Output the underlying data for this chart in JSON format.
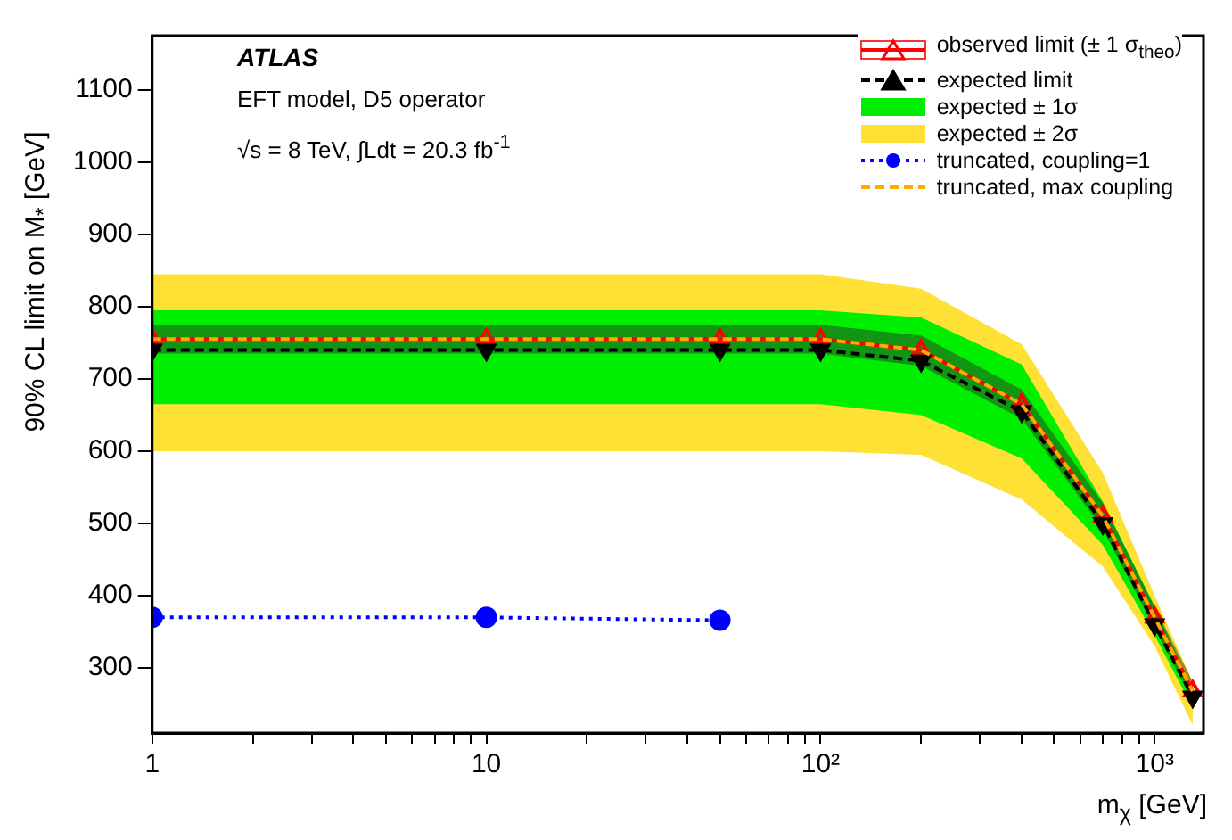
{
  "chart_data": {
    "type": "line",
    "xlabel": "m$_{χ}$ [GeV]",
    "ylabel": "90% CL limit on M$_{*}$ [GeV]",
    "annotations": [
      "ATLAS",
      "EFT model, D5 operator",
      "√s = 8 TeV,  ∫Ldt = 20.3 fb$^{-1}$"
    ],
    "log": "x",
    "xlim": [
      1,
      1400
    ],
    "ylim": [
      210,
      1175
    ],
    "xticks": [
      1,
      {
        "value": 2,
        "label": null
      },
      {
        "value": 3,
        "label": null
      },
      {
        "value": 4,
        "label": null
      },
      {
        "value": 5,
        "label": null
      },
      {
        "value": 6,
        "label": null
      },
      {
        "value": 7,
        "label": null
      },
      {
        "value": 8,
        "label": null
      },
      {
        "value": 9,
        "label": null
      },
      10,
      {
        "value": 20,
        "label": null
      },
      {
        "value": 30,
        "label": null
      },
      {
        "value": 40,
        "label": null
      },
      {
        "value": 50,
        "label": null
      },
      {
        "value": 60,
        "label": null
      },
      {
        "value": 70,
        "label": null
      },
      {
        "value": 80,
        "label": null
      },
      {
        "value": 90,
        "label": null
      },
      {
        "value": 100,
        "label": "10²"
      },
      {
        "value": 200,
        "label": null
      },
      {
        "value": 300,
        "label": null
      },
      {
        "value": 400,
        "label": null
      },
      {
        "value": 500,
        "label": null
      },
      {
        "value": 600,
        "label": null
      },
      {
        "value": 700,
        "label": null
      },
      {
        "value": 800,
        "label": null
      },
      {
        "value": 900,
        "label": null
      },
      {
        "value": 1000,
        "label": "10³"
      }
    ],
    "yticks": [
      300,
      400,
      500,
      600,
      700,
      800,
      900,
      1000,
      1100
    ],
    "grid": false,
    "legend": "top right",
    "x": [
      1,
      10,
      50,
      100,
      200,
      400,
      700,
      1000,
      1300
    ],
    "series": [
      {
        "name": "observed limit (± 1 σ$_{theo}$)",
        "type": "line",
        "color": "#ff0000",
        "marker": "triangle",
        "line_style": "solid",
        "values": [
          755,
          755,
          755,
          755,
          740,
          665,
          510,
          370,
          268
        ],
        "lower": [
          735,
          735,
          735,
          735,
          718,
          645,
          492,
          355,
          255
        ],
        "upper": [
          775,
          775,
          775,
          775,
          760,
          685,
          528,
          385,
          281
        ]
      },
      {
        "name": "expected limit",
        "type": "line",
        "color": "#000000",
        "marker": "triangle",
        "line_style": "dashed",
        "values": [
          740,
          740,
          740,
          740,
          725,
          655,
          500,
          360,
          260
        ]
      },
      {
        "name": "expected ± 1σ",
        "type": "line",
        "color": "#00ee00",
        "marker": "none",
        "values": [
          null,
          null,
          null,
          null,
          null,
          null,
          null,
          null,
          null
        ],
        "lower": [
          665,
          665,
          665,
          665,
          650,
          590,
          470,
          345,
          245
        ],
        "upper": [
          795,
          795,
          795,
          795,
          785,
          720,
          530,
          385,
          270
        ]
      },
      {
        "name": "expected ± 2σ",
        "type": "line",
        "color": "#ffe135",
        "marker": "none",
        "values": [
          null,
          null,
          null,
          null,
          null,
          null,
          null,
          null,
          null
        ],
        "lower": [
          600,
          600,
          600,
          600,
          595,
          533,
          440,
          330,
          221
        ],
        "upper": [
          845,
          845,
          845,
          845,
          825,
          748,
          570,
          400,
          280
        ]
      },
      {
        "name": "truncated, coupling=1",
        "type": "line",
        "color": "#0000ff",
        "marker": "circle",
        "line_style": "dotted",
        "x": [
          1,
          10,
          50
        ],
        "values": [
          370,
          370,
          366
        ]
      },
      {
        "name": "truncated, max coupling",
        "type": "line",
        "color": "#ffaa00",
        "marker": "none",
        "line_style": "dashed",
        "values": [
          755,
          755,
          755,
          755,
          740,
          665,
          510,
          370,
          268
        ]
      }
    ]
  }
}
